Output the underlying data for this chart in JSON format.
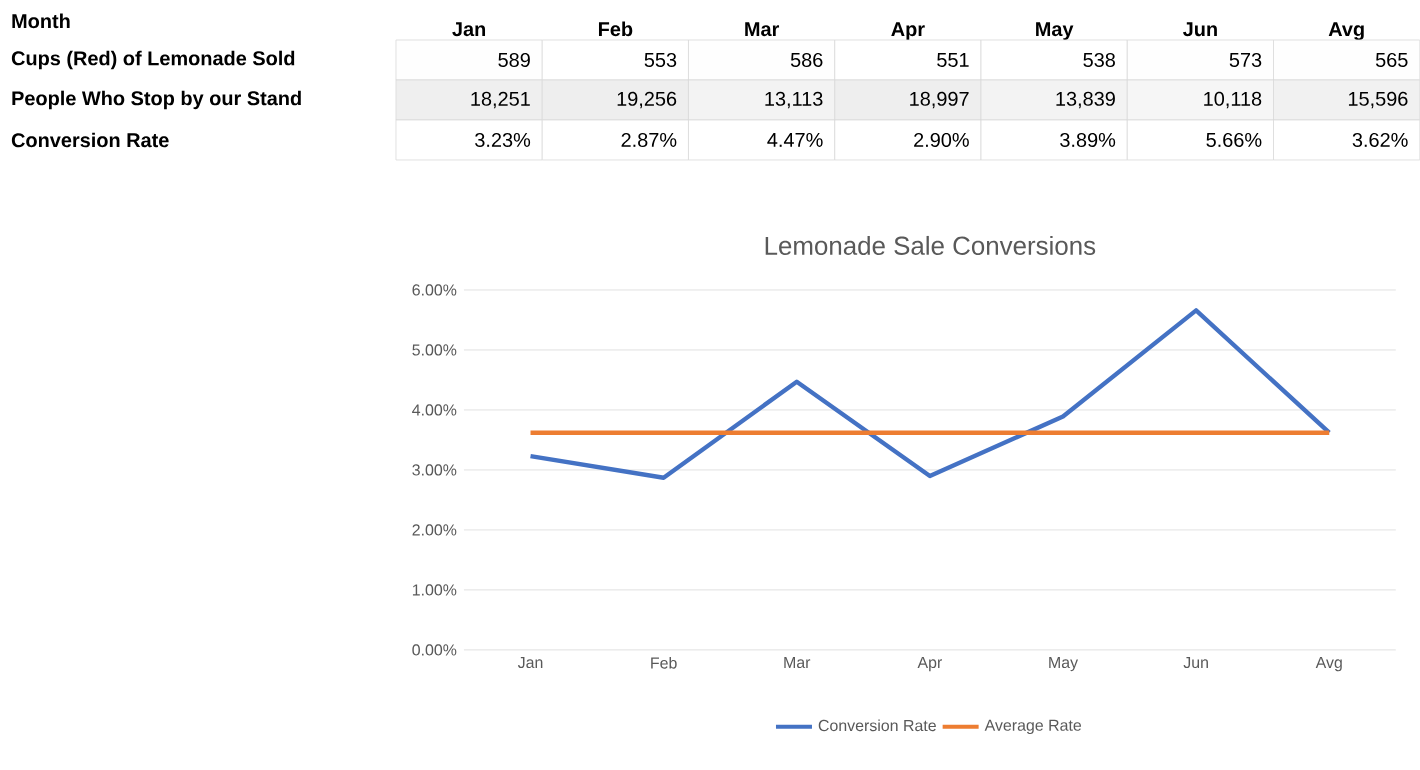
{
  "chart_data": [
    {
      "type": "heatmap",
      "xlabel": "Month",
      "categories": [
        "Jan",
        "Feb",
        "Mar",
        "Apr",
        "May",
        "Jun",
        "Avg"
      ],
      "y_categories": [
        "Cups (Red) of Lemonade Sold",
        "People Who Stop by our Stand",
        "Conversion Rate"
      ],
      "cells": [
        [
          589,
          553,
          586,
          551,
          538,
          573,
          565
        ],
        [
          18251,
          19256,
          13113,
          18997,
          13839,
          10118,
          15596
        ],
        [
          3.23,
          2.87,
          4.47,
          2.9,
          3.89,
          5.66,
          3.62
        ]
      ],
      "cell_labels": [
        [
          "589",
          "553",
          "586",
          "551",
          "538",
          "573",
          "565"
        ],
        [
          "18,251",
          "19,256",
          "13,113",
          "18,997",
          "13,839",
          "10,118",
          "15,596"
        ],
        [
          "3.23%",
          "2.87%",
          "4.47%",
          "2.90%",
          "3.89%",
          "5.66%",
          "3.62%"
        ]
      ]
    },
    {
      "type": "line",
      "title": "Lemonade Sale Conversions",
      "categories": [
        "Jan",
        "Feb",
        "Mar",
        "Apr",
        "May",
        "Jun",
        "Avg"
      ],
      "series": [
        {
          "name": "Conversion Rate",
          "color": "#4472c4",
          "values": [
            3.23,
            2.87,
            4.47,
            2.9,
            3.89,
            5.66,
            3.62
          ]
        },
        {
          "name": "Average Rate",
          "color": "#ed7d31",
          "values": [
            3.62,
            3.62,
            3.62,
            3.62,
            3.62,
            3.62,
            3.62
          ]
        }
      ],
      "ylim": [
        0,
        6
      ],
      "yticks": [
        {
          "value": 0,
          "label": "0.00%"
        },
        {
          "value": 1,
          "label": "1.00%"
        },
        {
          "value": 2,
          "label": "2.00%"
        },
        {
          "value": 3,
          "label": "3.00%"
        },
        {
          "value": 4,
          "label": "4.00%"
        },
        {
          "value": 5,
          "label": "5.00%"
        },
        {
          "value": 6,
          "label": "6.00%"
        }
      ],
      "grid": "y",
      "legend": "bottom",
      "marker": "none",
      "line_style": "solid"
    }
  ]
}
